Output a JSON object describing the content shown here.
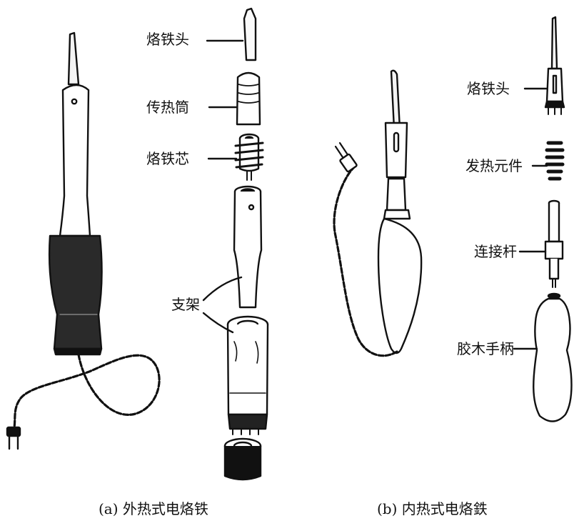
{
  "diagram": {
    "left_parts": {
      "tip": "烙铁头",
      "heat_tube": "传热筒",
      "core": "烙铁芯",
      "bracket": "支架"
    },
    "right_parts": {
      "tip": "烙铁头",
      "heating_element": "发热元件",
      "connecting_rod": "连接杆",
      "bakelite_handle": "胶木手柄"
    },
    "captions": {
      "a": "(a) 外热式电烙铁",
      "b": "(b) 内热式电烙鉄"
    }
  }
}
